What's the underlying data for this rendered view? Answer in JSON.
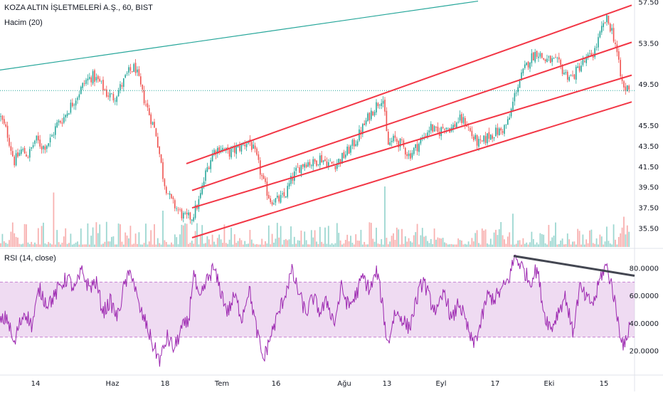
{
  "header": {
    "symbol_line": "KOZA ALTIN İŞLETMELERİ A.Ş., 60, BIST",
    "volume_label": "Hacim (20)",
    "rsi_label": "RSI (14, close)"
  },
  "chart_data": [
    {
      "type": "candlestick",
      "title": "KOZA ALTIN İŞLETMELERİ A.Ş., 60, BIST",
      "ylim": [
        34.5,
        57.5
      ],
      "yticks": [
        "57.50",
        "53.50",
        "49.50",
        "45.50",
        "43.50",
        "41.50",
        "39.50",
        "37.50",
        "35.50"
      ],
      "ytick_values": [
        57.5,
        53.5,
        49.5,
        45.5,
        43.5,
        41.5,
        39.5,
        37.5,
        35.5
      ],
      "xticks": [
        "14",
        "Haz",
        "18",
        "Tem",
        "16",
        "Ağu",
        "13",
        "Eyl",
        "17",
        "Eki",
        "15"
      ],
      "last_price": 48.9,
      "close_path": [
        [
          0,
          46.4
        ],
        [
          10,
          44.8
        ],
        [
          20,
          42.0
        ],
        [
          30,
          43.1
        ],
        [
          40,
          42.6
        ],
        [
          50,
          44.2
        ],
        [
          60,
          43.4
        ],
        [
          70,
          44.0
        ],
        [
          80,
          45.6
        ],
        [
          90,
          46.3
        ],
        [
          100,
          47.5
        ],
        [
          110,
          48.6
        ],
        [
          120,
          49.8
        ],
        [
          130,
          50.3
        ],
        [
          140,
          49.7
        ],
        [
          150,
          48.6
        ],
        [
          160,
          48.2
        ],
        [
          170,
          49.3
        ],
        [
          180,
          50.6
        ],
        [
          190,
          51.2
        ],
        [
          200,
          48.6
        ],
        [
          210,
          46.6
        ],
        [
          220,
          44.6
        ],
        [
          230,
          40.2
        ],
        [
          240,
          38.2
        ],
        [
          250,
          37.3
        ],
        [
          260,
          36.5
        ],
        [
          270,
          36.6
        ],
        [
          280,
          38.2
        ],
        [
          290,
          41.1
        ],
        [
          300,
          43.0
        ],
        [
          310,
          43.4
        ],
        [
          320,
          42.8
        ],
        [
          330,
          43.1
        ],
        [
          340,
          43.5
        ],
        [
          350,
          44.1
        ],
        [
          360,
          42.5
        ],
        [
          370,
          40.0
        ],
        [
          380,
          38.3
        ],
        [
          390,
          38.2
        ],
        [
          400,
          38.6
        ],
        [
          410,
          40.3
        ],
        [
          420,
          41.4
        ],
        [
          430,
          42.0
        ],
        [
          440,
          41.8
        ],
        [
          450,
          42.4
        ],
        [
          460,
          41.9
        ],
        [
          470,
          41.7
        ],
        [
          480,
          42.3
        ],
        [
          490,
          43.1
        ],
        [
          500,
          44.0
        ],
        [
          510,
          45.3
        ],
        [
          520,
          46.6
        ],
        [
          530,
          47.6
        ],
        [
          538,
          48.4
        ],
        [
          545,
          43.6
        ],
        [
          555,
          44.2
        ],
        [
          565,
          43.6
        ],
        [
          575,
          42.6
        ],
        [
          585,
          43.4
        ],
        [
          595,
          44.3
        ],
        [
          605,
          45.4
        ],
        [
          615,
          44.7
        ],
        [
          625,
          45.5
        ],
        [
          635,
          45.2
        ],
        [
          645,
          46.1
        ],
        [
          655,
          45.8
        ],
        [
          665,
          44.3
        ],
        [
          675,
          43.6
        ],
        [
          685,
          44.4
        ],
        [
          695,
          44.8
        ],
        [
          705,
          45.0
        ],
        [
          715,
          45.9
        ],
        [
          725,
          48.9
        ],
        [
          735,
          50.6
        ],
        [
          745,
          52.0
        ],
        [
          755,
          52.7
        ],
        [
          765,
          51.9
        ],
        [
          775,
          51.8
        ],
        [
          785,
          51.5
        ],
        [
          795,
          50.5
        ],
        [
          805,
          50.2
        ],
        [
          815,
          51.3
        ],
        [
          825,
          51.9
        ],
        [
          835,
          52.6
        ],
        [
          845,
          54.6
        ],
        [
          852,
          55.9
        ],
        [
          860,
          54.8
        ],
        [
          866,
          53.2
        ],
        [
          872,
          50.3
        ],
        [
          878,
          48.9
        ],
        [
          886,
          49.5
        ]
      ],
      "trendlines": [
        {
          "name": "teal-line",
          "color": "#26a69a",
          "points": [
            [
              0,
              50.9
            ],
            [
              672,
              57.6
            ]
          ]
        },
        {
          "name": "channel-1",
          "color": "#f23645",
          "points": [
            [
              262,
              41.8
            ],
            [
              888,
              57.2
            ]
          ]
        },
        {
          "name": "channel-2",
          "color": "#f23645",
          "points": [
            [
              270,
              39.2
            ],
            [
              888,
              53.6
            ]
          ]
        },
        {
          "name": "channel-3",
          "color": "#f23645",
          "points": [
            [
              270,
              37.5
            ],
            [
              888,
              50.4
            ]
          ]
        },
        {
          "name": "channel-4",
          "color": "#f23645",
          "points": [
            [
              270,
              34.6
            ],
            [
              888,
              47.8
            ]
          ]
        }
      ],
      "colors": {
        "up": "#26a69a",
        "down": "#ef5350",
        "price_line": "#26a69a"
      }
    },
    {
      "type": "bar",
      "title": "Hacim (20)",
      "spikes": [
        [
          75,
          0.9
        ],
        [
          230,
          0.6
        ],
        [
          542,
          1.0
        ],
        [
          722,
          0.55
        ],
        [
          878,
          0.5
        ]
      ]
    },
    {
      "type": "line",
      "title": "RSI (14, close)",
      "ylim": [
        5,
        93
      ],
      "yticks": [
        "80.0000",
        "60.0000",
        "40.0000",
        "20.0000"
      ],
      "ytick_values": [
        80,
        60,
        40,
        20
      ],
      "band": [
        30,
        70
      ],
      "color": "#9c27b0",
      "band_color": "#e1bee7",
      "trendline": {
        "name": "rsi-divergence-line",
        "color": "#434651",
        "points": [
          [
            722,
            89.0
          ],
          [
            892,
            74.6
          ]
        ]
      },
      "anchors": [
        [
          0,
          40
        ],
        [
          10,
          45
        ],
        [
          20,
          23
        ],
        [
          25,
          36
        ],
        [
          35,
          49
        ],
        [
          45,
          38
        ],
        [
          55,
          65
        ],
        [
          65,
          55
        ],
        [
          75,
          58
        ],
        [
          85,
          68
        ],
        [
          95,
          73
        ],
        [
          105,
          64
        ],
        [
          115,
          78
        ],
        [
          125,
          66
        ],
        [
          135,
          70
        ],
        [
          145,
          48
        ],
        [
          155,
          56
        ],
        [
          165,
          44
        ],
        [
          175,
          68
        ],
        [
          185,
          78
        ],
        [
          195,
          52
        ],
        [
          205,
          40
        ],
        [
          215,
          24
        ],
        [
          225,
          13
        ],
        [
          235,
          30
        ],
        [
          245,
          21
        ],
        [
          255,
          36
        ],
        [
          265,
          41
        ],
        [
          272,
          78
        ],
        [
          280,
          55
        ],
        [
          290,
          70
        ],
        [
          300,
          80
        ],
        [
          310,
          64
        ],
        [
          320,
          48
        ],
        [
          330,
          60
        ],
        [
          340,
          44
        ],
        [
          350,
          66
        ],
        [
          360,
          37
        ],
        [
          370,
          13
        ],
        [
          380,
          30
        ],
        [
          390,
          45
        ],
        [
          400,
          60
        ],
        [
          410,
          78
        ],
        [
          420,
          62
        ],
        [
          430,
          47
        ],
        [
          440,
          59
        ],
        [
          450,
          48
        ],
        [
          460,
          56
        ],
        [
          470,
          40
        ],
        [
          480,
          66
        ],
        [
          490,
          52
        ],
        [
          500,
          60
        ],
        [
          510,
          74
        ],
        [
          520,
          64
        ],
        [
          530,
          78
        ],
        [
          538,
          52
        ],
        [
          545,
          24
        ],
        [
          555,
          48
        ],
        [
          565,
          44
        ],
        [
          575,
          36
        ],
        [
          585,
          56
        ],
        [
          595,
          72
        ],
        [
          605,
          56
        ],
        [
          615,
          48
        ],
        [
          625,
          64
        ],
        [
          635,
          41
        ],
        [
          645,
          56
        ],
        [
          655,
          40
        ],
        [
          665,
          24
        ],
        [
          675,
          38
        ],
        [
          685,
          60
        ],
        [
          695,
          58
        ],
        [
          705,
          64
        ],
        [
          715,
          72
        ],
        [
          724,
          89
        ],
        [
          735,
          80
        ],
        [
          745,
          70
        ],
        [
          755,
          80
        ],
        [
          765,
          47
        ],
        [
          775,
          36
        ],
        [
          785,
          49
        ],
        [
          795,
          60
        ],
        [
          805,
          33
        ],
        [
          815,
          66
        ],
        [
          825,
          57
        ],
        [
          835,
          55
        ],
        [
          845,
          75
        ],
        [
          852,
          82
        ],
        [
          860,
          68
        ],
        [
          866,
          50
        ],
        [
          872,
          33
        ],
        [
          878,
          22
        ],
        [
          886,
          43
        ]
      ]
    }
  ]
}
